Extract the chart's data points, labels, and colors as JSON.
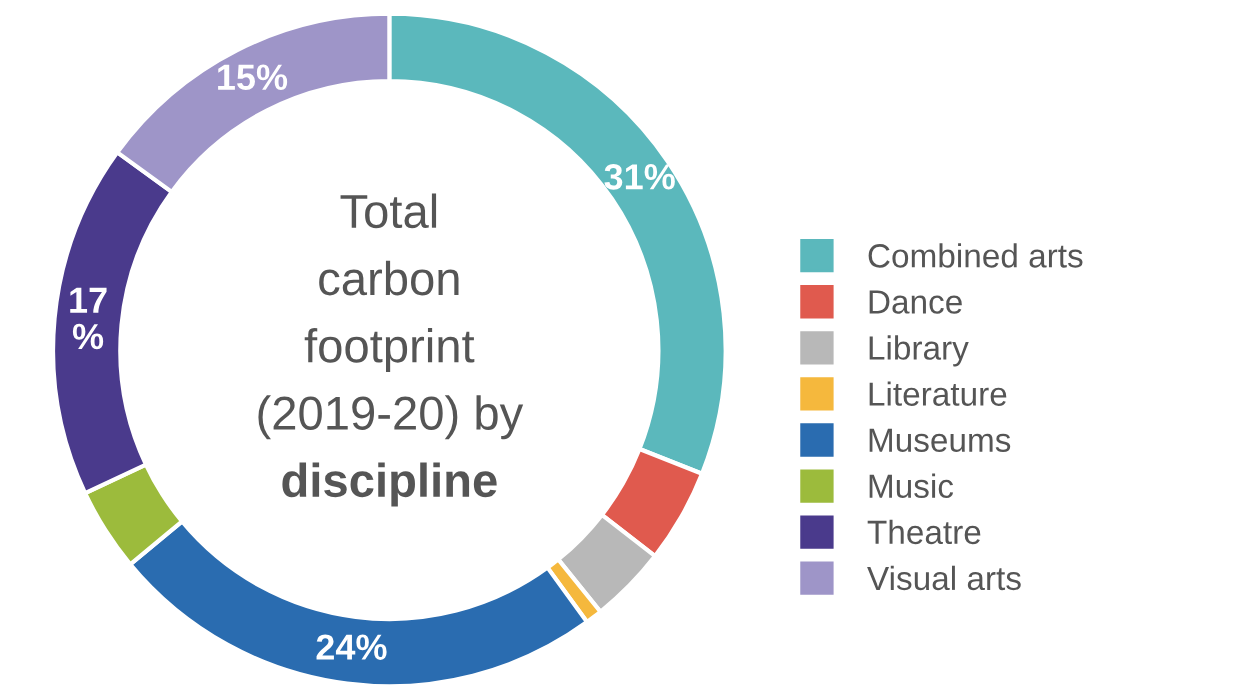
{
  "chart_data": {
    "type": "donut",
    "title": "Total\ncarbon\nfootprint\n(2019-20) by\ndiscipline",
    "categories": [
      "Combined arts",
      "Dance",
      "Library",
      "Literature",
      "Museums",
      "Music",
      "Theatre",
      "Visual arts"
    ],
    "values": [
      31,
      4.5,
      3.7,
      0.8,
      24,
      4,
      17,
      15
    ],
    "colors": [
      "#5bb8bc",
      "#e05a4e",
      "#b8b8b8",
      "#f5b83d",
      "#2a6cb0",
      "#9cbb3c",
      "#4a3a8c",
      "#9e95c8"
    ],
    "value_labels": [
      "31%",
      null,
      null,
      null,
      "24%",
      null,
      "17\n%",
      "15%"
    ],
    "legend": "right"
  }
}
